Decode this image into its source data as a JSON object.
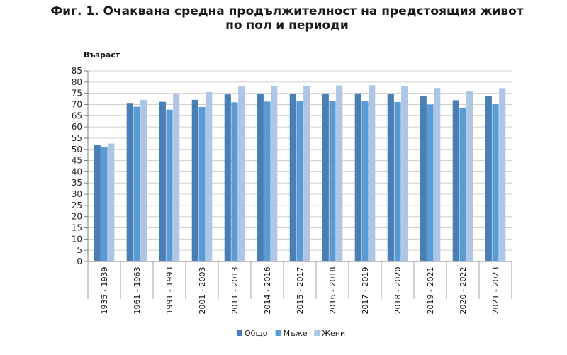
{
  "chart_data": {
    "type": "bar",
    "title": "Фиг. 1. Очаквана средна продължителност на предстоящия живот по пол и периоди",
    "ylabel": "Възраст",
    "xlabel": "",
    "ylim": [
      0,
      85
    ],
    "yticks": [
      0,
      5,
      10,
      15,
      20,
      25,
      30,
      35,
      40,
      45,
      50,
      55,
      60,
      65,
      70,
      75,
      80,
      85
    ],
    "grid": true,
    "legend_position": "bottom",
    "categories": [
      "1935 - 1939",
      "1961 - 1963",
      "1991 - 1993",
      "2001 - 2003",
      "2011 - 2013",
      "2014 - 2016",
      "2015 - 2017",
      "2016 - 2018",
      "2017 - 2019",
      "2018 - 2020",
      "2019 - 2021",
      "2020 - 2022",
      "2021 - 2023"
    ],
    "series": [
      {
        "name": "Общо",
        "color": "#4a7fb5",
        "values": [
          51.8,
          70.4,
          71.2,
          72.1,
          74.5,
          74.9,
          74.8,
          74.9,
          75.0,
          74.6,
          73.6,
          71.9,
          73.6
        ]
      },
      {
        "name": "Мъже",
        "color": "#5b9bd5",
        "values": [
          51.0,
          69.0,
          67.7,
          68.9,
          71.0,
          71.3,
          71.4,
          71.5,
          71.6,
          71.1,
          70.0,
          68.6,
          70.1
        ]
      },
      {
        "name": "Жени",
        "color": "#adc6e5",
        "values": [
          52.6,
          72.1,
          74.9,
          75.6,
          78.0,
          78.3,
          78.4,
          78.5,
          78.6,
          78.3,
          77.4,
          75.8,
          77.3
        ]
      }
    ]
  }
}
